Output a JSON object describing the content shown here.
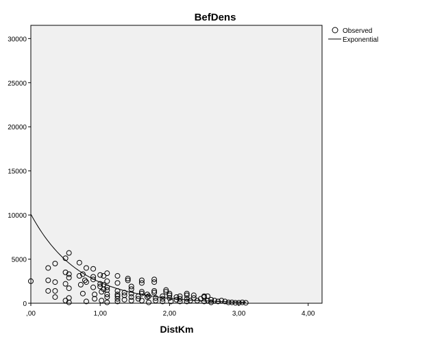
{
  "chart_data": {
    "type": "scatter",
    "title": "BefDens",
    "xlabel": "DistKm",
    "ylabel": "",
    "xlim": [
      0,
      4.2
    ],
    "ylim": [
      0,
      31500
    ],
    "x_ticks": [
      0,
      1,
      2,
      3,
      4
    ],
    "x_tick_labels": [
      ",00",
      "1,00",
      "2,00",
      "3,00",
      "4,00"
    ],
    "y_ticks": [
      0,
      5000,
      10000,
      15000,
      20000,
      25000,
      30000
    ],
    "y_tick_labels": [
      "0",
      "5000",
      "10000",
      "15000",
      "20000",
      "25000",
      "30000"
    ],
    "grid": false,
    "legend_position": "top-right",
    "legend": [
      {
        "label": "Observed",
        "marker": "circle"
      },
      {
        "label": "Exponential",
        "marker": "line"
      }
    ],
    "plot_background": "#f0f0f0",
    "marker_color": "#000000",
    "series": [
      {
        "name": "Observed",
        "type": "scatter",
        "points": [
          [
            0.0,
            2500
          ],
          [
            0.25,
            4000
          ],
          [
            0.25,
            2600
          ],
          [
            0.25,
            1400
          ],
          [
            0.35,
            4500
          ],
          [
            0.35,
            2400
          ],
          [
            0.35,
            1400
          ],
          [
            0.35,
            700
          ],
          [
            0.5,
            5100
          ],
          [
            0.5,
            3500
          ],
          [
            0.5,
            2200
          ],
          [
            0.5,
            300
          ],
          [
            0.55,
            5700
          ],
          [
            0.55,
            3300
          ],
          [
            0.55,
            2900
          ],
          [
            0.55,
            1700
          ],
          [
            0.55,
            600
          ],
          [
            0.55,
            100
          ],
          [
            0.7,
            4600
          ],
          [
            0.7,
            3100
          ],
          [
            0.72,
            2100
          ],
          [
            0.75,
            3300
          ],
          [
            0.75,
            1100
          ],
          [
            0.78,
            2600
          ],
          [
            0.8,
            4000
          ],
          [
            0.8,
            2400
          ],
          [
            0.8,
            200
          ],
          [
            0.9,
            3900
          ],
          [
            0.9,
            3000
          ],
          [
            0.9,
            2700
          ],
          [
            0.9,
            1800
          ],
          [
            0.92,
            1000
          ],
          [
            0.92,
            500
          ],
          [
            1.0,
            3200
          ],
          [
            1.0,
            2200
          ],
          [
            1.0,
            1900
          ],
          [
            1.02,
            1300
          ],
          [
            1.02,
            300
          ],
          [
            1.05,
            3100
          ],
          [
            1.05,
            2100
          ],
          [
            1.05,
            1600
          ],
          [
            1.1,
            3400
          ],
          [
            1.1,
            2500
          ],
          [
            1.1,
            1800
          ],
          [
            1.1,
            1500
          ],
          [
            1.1,
            1000
          ],
          [
            1.1,
            700
          ],
          [
            1.1,
            100
          ],
          [
            1.25,
            3100
          ],
          [
            1.25,
            2300
          ],
          [
            1.25,
            1400
          ],
          [
            1.25,
            1000
          ],
          [
            1.25,
            800
          ],
          [
            1.25,
            500
          ],
          [
            1.25,
            200
          ],
          [
            1.35,
            1200
          ],
          [
            1.35,
            900
          ],
          [
            1.35,
            400
          ],
          [
            1.4,
            2800
          ],
          [
            1.4,
            2600
          ],
          [
            1.45,
            1900
          ],
          [
            1.45,
            1600
          ],
          [
            1.45,
            1100
          ],
          [
            1.45,
            700
          ],
          [
            1.45,
            300
          ],
          [
            1.55,
            800
          ],
          [
            1.55,
            500
          ],
          [
            1.6,
            2600
          ],
          [
            1.6,
            2300
          ],
          [
            1.6,
            1300
          ],
          [
            1.6,
            1100
          ],
          [
            1.6,
            300
          ],
          [
            1.68,
            1000
          ],
          [
            1.68,
            700
          ],
          [
            1.7,
            800
          ],
          [
            1.7,
            100
          ],
          [
            1.78,
            2700
          ],
          [
            1.78,
            2400
          ],
          [
            1.78,
            1400
          ],
          [
            1.78,
            1200
          ],
          [
            1.8,
            600
          ],
          [
            1.8,
            300
          ],
          [
            1.9,
            800
          ],
          [
            1.9,
            500
          ],
          [
            1.9,
            200
          ],
          [
            1.95,
            1500
          ],
          [
            1.95,
            1300
          ],
          [
            2.0,
            1100
          ],
          [
            2.0,
            900
          ],
          [
            2.0,
            600
          ],
          [
            2.02,
            200
          ],
          [
            2.1,
            700
          ],
          [
            2.1,
            400
          ],
          [
            2.15,
            800
          ],
          [
            2.15,
            500
          ],
          [
            2.15,
            200
          ],
          [
            2.25,
            1100
          ],
          [
            2.25,
            900
          ],
          [
            2.25,
            500
          ],
          [
            2.25,
            200
          ],
          [
            2.3,
            300
          ],
          [
            2.35,
            900
          ],
          [
            2.35,
            600
          ],
          [
            2.4,
            300
          ],
          [
            2.45,
            500
          ],
          [
            2.5,
            800
          ],
          [
            2.5,
            700
          ],
          [
            2.5,
            200
          ],
          [
            2.55,
            800
          ],
          [
            2.55,
            300
          ],
          [
            2.6,
            400
          ],
          [
            2.6,
            100
          ],
          [
            2.65,
            300
          ],
          [
            2.7,
            200
          ],
          [
            2.75,
            300
          ],
          [
            2.8,
            200
          ],
          [
            2.85,
            100
          ],
          [
            2.9,
            100
          ],
          [
            2.95,
            50
          ],
          [
            3.0,
            50
          ],
          [
            3.05,
            100
          ],
          [
            3.1,
            50
          ]
        ]
      },
      {
        "name": "Exponential",
        "type": "line",
        "model": "y = a * exp(b * x)",
        "a": 10100,
        "b": -1.45
      }
    ]
  }
}
